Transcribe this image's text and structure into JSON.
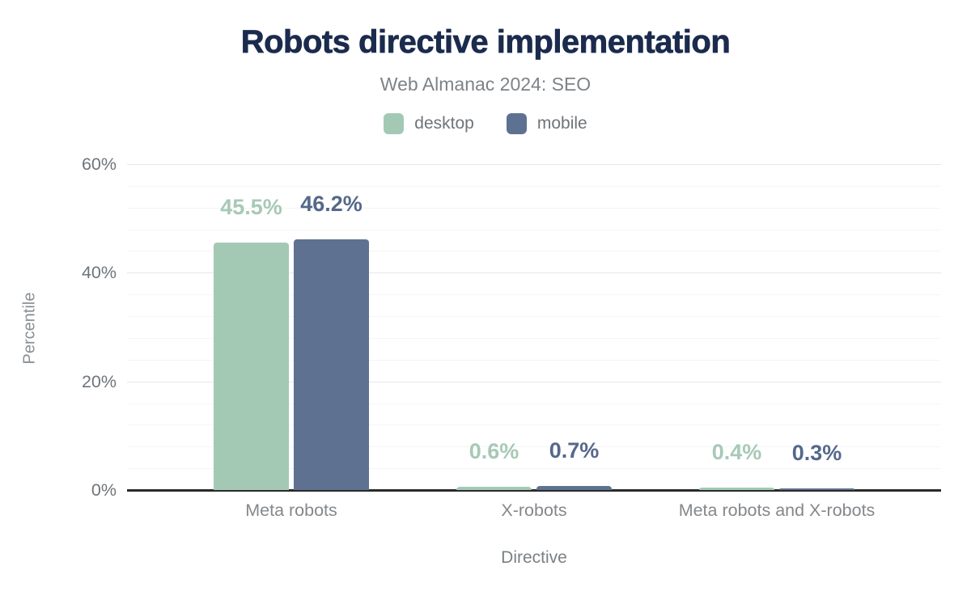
{
  "page": {
    "background": "#ffffff"
  },
  "chart_data": {
    "type": "bar",
    "title": "Robots directive implementation",
    "subtitle": "Web Almanac 2024: SEO",
    "categories": [
      "Meta robots",
      "X-robots",
      "Meta robots and X-robots"
    ],
    "series": [
      {
        "name": "desktop",
        "color": "#a3c9b4",
        "label_color": "#a6c9b6",
        "values": [
          45.5,
          0.6,
          0.4
        ],
        "data_labels": [
          "45.5%",
          "0.6%",
          "0.4%"
        ]
      },
      {
        "name": "mobile",
        "color": "#5e7190",
        "label_color": "#55688a",
        "values": [
          46.2,
          0.7,
          0.3
        ],
        "data_labels": [
          "46.2%",
          "0.7%",
          "0.3%"
        ]
      }
    ],
    "xlabel": "Directive",
    "ylabel": "Percentile",
    "ylim": [
      0,
      60
    ],
    "yticks": [
      0,
      20,
      40,
      60
    ],
    "ytick_labels": [
      "0%",
      "20%",
      "40%",
      "60%"
    ],
    "minor_grid_step": 4,
    "grid": true,
    "legend_position": "top",
    "title_color": "#1b2b4d",
    "axis_line_color": "#2a2a2a"
  }
}
